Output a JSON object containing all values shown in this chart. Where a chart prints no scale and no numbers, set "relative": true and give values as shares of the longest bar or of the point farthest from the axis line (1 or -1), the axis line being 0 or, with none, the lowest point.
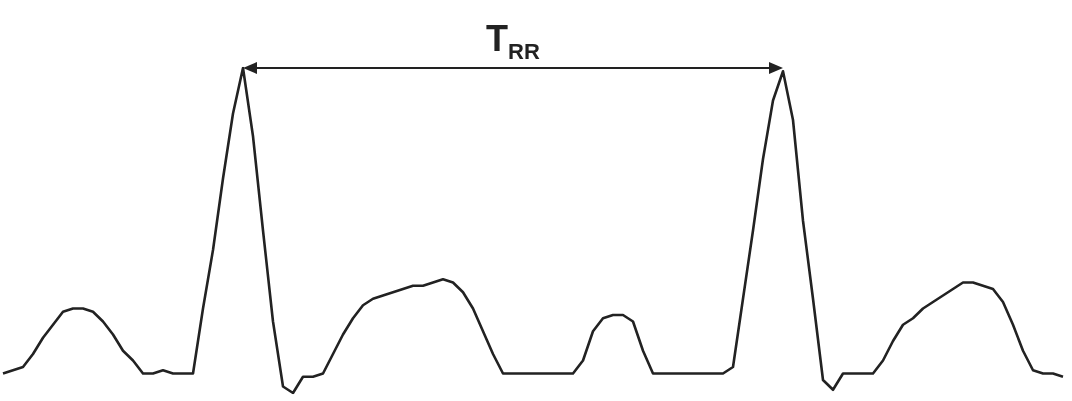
{
  "chart_data": {
    "type": "line",
    "relative": true,
    "marker": "none",
    "categories": [
      null,
      null,
      null,
      null,
      null,
      null,
      null,
      null,
      null,
      null,
      null,
      null,
      null,
      null,
      null,
      null,
      null,
      null,
      null,
      null,
      null,
      null,
      null,
      null,
      null,
      null,
      null,
      null,
      null,
      null,
      null,
      null,
      null,
      null,
      null,
      null,
      null,
      null,
      null,
      null,
      null,
      null,
      null,
      null,
      null,
      null,
      null,
      null,
      null,
      null,
      null,
      null,
      null,
      null,
      null,
      null,
      null,
      null,
      null,
      null,
      null,
      null,
      null,
      null,
      null,
      null,
      null,
      null,
      null,
      null,
      null,
      null,
      null,
      null,
      null,
      null,
      null,
      null,
      null,
      null,
      null,
      null,
      null,
      null,
      null,
      null,
      null,
      null,
      null,
      null,
      null,
      null,
      null,
      null,
      null,
      null,
      null,
      null,
      null,
      null,
      null,
      null,
      null,
      null,
      null,
      null,
      null
    ],
    "series": [
      {
        "color": "#222222",
        "values": [
          0.06,
          0.07,
          0.08,
          0.12,
          0.17,
          0.21,
          0.25,
          0.26,
          0.26,
          0.25,
          0.22,
          0.18,
          0.13,
          0.1,
          0.06,
          0.06,
          0.07,
          0.06,
          0.06,
          0.06,
          0.26,
          0.44,
          0.66,
          0.86,
          1,
          0.79,
          0.5,
          0.22,
          0.02,
          0,
          0.05,
          0.05,
          0.06,
          0.12,
          0.18,
          0.23,
          0.27,
          0.29,
          0.3,
          0.31,
          0.32,
          0.33,
          0.33,
          0.34,
          0.35,
          0.34,
          0.31,
          0.26,
          0.19,
          0.12,
          0.06,
          0.06,
          0.06,
          0.06,
          0.06,
          0.06,
          0.06,
          0.06,
          0.1,
          0.19,
          0.23,
          0.24,
          0.24,
          0.22,
          0.13,
          0.06,
          0.06,
          0.06,
          0.06,
          0.06,
          0.06,
          0.06,
          0.06,
          0.08,
          0.29,
          0.5,
          0.72,
          0.9,
          0.99,
          0.84,
          0.53,
          0.29,
          0.04,
          0.01,
          0.06,
          0.06,
          0.06,
          0.06,
          0.1,
          0.16,
          0.21,
          0.23,
          0.26,
          0.28,
          0.3,
          0.32,
          0.34,
          0.34,
          0.33,
          0.32,
          0.28,
          0.21,
          0.13,
          0.07,
          0.06,
          0.06,
          0.05
        ]
      }
    ],
    "annotations": [
      "T$_{RR}$"
    ]
  }
}
